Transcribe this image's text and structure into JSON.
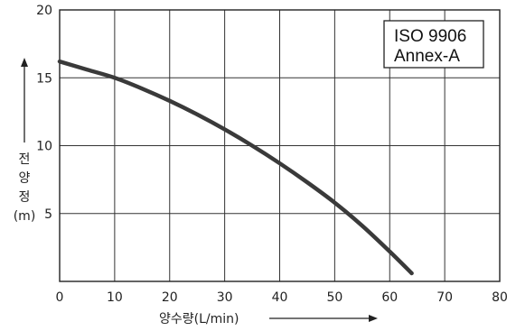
{
  "chart_data": {
    "type": "line",
    "title": "",
    "xlabel": "양수량(L/min)",
    "ylabel_chars": [
      "전",
      "양",
      "정"
    ],
    "ylabel_unit": "(m)",
    "xlim": [
      0,
      80
    ],
    "ylim": [
      0,
      20
    ],
    "xticks": [
      0,
      10,
      20,
      30,
      40,
      50,
      60,
      70,
      80
    ],
    "yticks": [
      5,
      10,
      15,
      20
    ],
    "grid": true,
    "annotation_lines": [
      "ISO 9906",
      "Annex-A"
    ],
    "annotation_position": "top-right",
    "series": [
      {
        "x": [
          0,
          5,
          10,
          15,
          20,
          25,
          30,
          35,
          40,
          45,
          50,
          55,
          60,
          64
        ],
        "y": [
          16.2,
          15.6,
          15.0,
          14.2,
          13.3,
          12.3,
          11.2,
          10.0,
          8.7,
          7.3,
          5.8,
          4.1,
          2.2,
          0.6
        ]
      }
    ]
  }
}
